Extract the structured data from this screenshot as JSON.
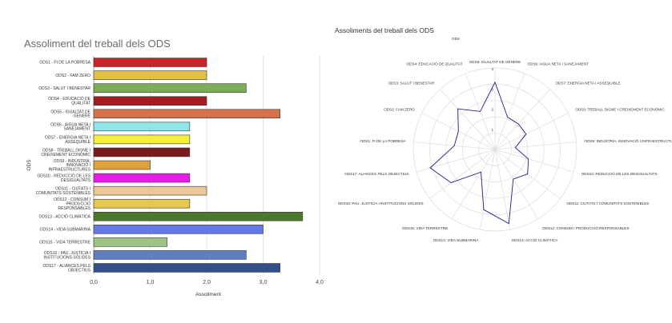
{
  "chart_data": [
    {
      "type": "bar",
      "orientation": "horizontal",
      "title": "Assoliment del treball dels ODS",
      "xlabel": "Assoliment",
      "ylabel": "ODS",
      "xlim": [
        0,
        4
      ],
      "xticks": [
        "0,0",
        "1,0",
        "2,0",
        "3,0",
        "4,0"
      ],
      "grid": true,
      "categories": [
        [
          "ODS1 - FI DE LA POBRESA"
        ],
        [
          "ODS2 - FAM ZERO"
        ],
        [
          "ODS3 - SALUT I BENESTAR"
        ],
        [
          "ODS4 - EDUCACIÓ DE",
          "QUALITAT"
        ],
        [
          "ODS5 - IGUALTAT DE",
          "GÈNERE"
        ],
        [
          "ODS6 - AIGUA NETA I",
          "SANEJAMENT"
        ],
        [
          "ODS7 - ENERGIA NETA I",
          "ASSEQUIBLE"
        ],
        [
          "ODS8 - TREBALL DIGNE I",
          "CREIXEMENT ECONÒMIC"
        ],
        [
          "ODS9 - INDÚSTRIA,",
          "INNOVACIÓ I",
          "INFRAESTRUCTURES"
        ],
        [
          "ODS10 - REDUCCIÓ DE LES",
          "DESIGUALTATS"
        ],
        [
          "ODS11 - CIUTATS I",
          "COMUNITATS SOSTENIBLES"
        ],
        [
          "ODS12 - CONSUM I",
          "PRODUCCIÓ",
          "RESPONSABLES"
        ],
        [
          "ODS13 - ACCIÓ CLIMÀTICA"
        ],
        [
          "ODS14 - VIDA SUBMARINA"
        ],
        [
          "ODS15 - VIDA TERRESTRE"
        ],
        [
          "ODS16 - PAU, JUSTÍCIA I",
          "INSTITUCIONS SÒLIDES"
        ],
        [
          "ODS17 - ALIANCES PELS",
          "OBJECTIUS"
        ]
      ],
      "values": [
        2.0,
        2.0,
        2.7,
        2.0,
        3.3,
        1.7,
        1.7,
        1.7,
        1.0,
        1.7,
        2.0,
        1.7,
        3.7,
        3.0,
        1.3,
        2.7,
        3.3
      ],
      "colors": [
        "#cc2229",
        "#e2c042",
        "#7ead57",
        "#a31c22",
        "#d87149",
        "#8fe6e8",
        "#f4f03a",
        "#7c1a1e",
        "#e0a03a",
        "#e81ae8",
        "#eac896",
        "#e4c94e",
        "#4d7a2a",
        "#6677e6",
        "#a0c484",
        "#5f7fc0",
        "#344f8e"
      ]
    },
    {
      "type": "radar",
      "title": "Assoliments del treball dels ODS",
      "series_name": "ODS",
      "rlim": [
        0,
        4
      ],
      "rticks": [
        "1",
        "2",
        "3",
        "4"
      ],
      "line_color": "#1b1b8c",
      "categories": [
        "ODS5: IGUALTAT DE GÈNERE",
        "ODS6: AIGUA NETA I SANEJAMENT",
        "ODS7: ENERGIA NETA I ASSEQUIBLE",
        "ODS8: TREBALL DIGNE I CREIXEMENT ECONÒMIC",
        "ODS9: INDÚSTRIA, INNOVACIÓ I INFRAESTRUCTURES",
        "ODS10: REDUCCIÓ DE LES DESIGUALTATS",
        "ODS11: CIUTATS I COMUNITATS SOSTENIBLES",
        "ODS12: CONSUM I PRODUCCIÓ RESPONSABLES",
        "ODS13: ACCIÓ CLIMÀTICA",
        "ODS14: VIDA SUBMARINA",
        "ODS15: VIDA TERRESTRE",
        "ODS16: PAU, JUSTÍCIA I INSTITUCIONS SÒLIDES",
        "ODS17: ALIANCES PELS OBJECTIUS",
        "ODS1: FI DE LA POBRESA",
        "ODS2: FAM ZERO",
        "ODS3: SALUT I BENESTAR",
        "ODS4: EDUCACIÓ DE QUALITAT"
      ],
      "values": [
        3.3,
        1.7,
        1.7,
        1.7,
        1.0,
        1.7,
        2.0,
        1.7,
        3.7,
        3.0,
        1.3,
        2.7,
        3.3,
        2.0,
        2.0,
        2.7,
        2.0
      ]
    }
  ]
}
